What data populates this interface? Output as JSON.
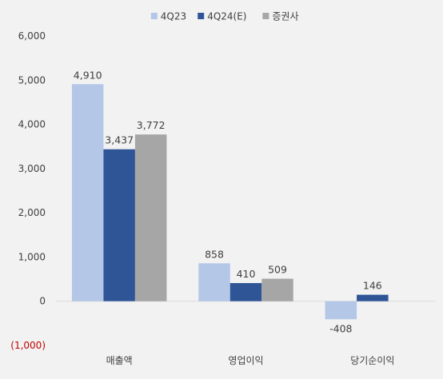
{
  "chart_data": {
    "type": "bar",
    "categories": [
      "매출액",
      "영업이익",
      "당기순이익"
    ],
    "series": [
      {
        "name": "4Q23",
        "values": [
          4910,
          858,
          -408
        ],
        "color": "#b4c7e7"
      },
      {
        "name": "4Q24(E)",
        "values": [
          3437,
          410,
          146
        ],
        "color": "#2f5597"
      },
      {
        "name": "증권사",
        "values": [
          3772,
          509,
          null
        ],
        "color": "#a6a6a6"
      }
    ],
    "data_labels": [
      [
        "4,910",
        "858",
        "-408"
      ],
      [
        "3,437",
        "410",
        "146"
      ],
      [
        "3,772",
        "509",
        ""
      ]
    ],
    "ylim": [
      -1000,
      6000
    ],
    "yticks": [
      -1000,
      0,
      1000,
      2000,
      3000,
      4000,
      5000,
      6000
    ],
    "ytick_labels": [
      "(1,000)",
      "0",
      "1,000",
      "2,000",
      "3,000",
      "4,000",
      "5,000",
      "6,000"
    ],
    "negative_tick_color": "#c00000",
    "legend_position": "top-center",
    "grid": false
  }
}
